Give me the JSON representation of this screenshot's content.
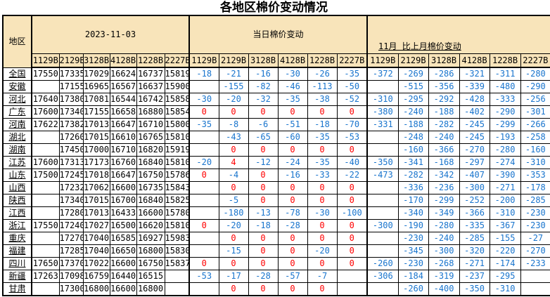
{
  "title": "各地区棉价变动情况",
  "colors": {
    "negative_text": "#1874CD",
    "non_negative_text": "#FF0000",
    "header_fill": "#F8E4BA",
    "border": "#000000"
  },
  "header": {
    "region_label": "地区",
    "groups": [
      {
        "label": "2023-11-03"
      },
      {
        "label": "当日棉价变动"
      },
      {
        "label": "11月 比上月棉价变动"
      }
    ],
    "grade_codes": [
      "1129B",
      "2129B",
      "3128B",
      "4128B",
      "1228B",
      "2227B"
    ]
  },
  "rows": [
    {
      "region": "全国",
      "prices": [
        "17550",
        "17335",
        "17029",
        "16624",
        "16737",
        "15819"
      ],
      "daily_change": [
        "-18",
        "-21",
        "-16",
        "-30",
        "-26",
        "-35"
      ],
      "monthly_change": [
        "-372",
        "-269",
        "-286",
        "-321",
        "-311",
        "-280"
      ]
    },
    {
      "region": "安徽",
      "prices": [
        "",
        "17155",
        "16965",
        "16567",
        "16637",
        "15900"
      ],
      "daily_change": [
        "",
        "-155",
        "-82",
        "-46",
        "-113",
        "-50"
      ],
      "monthly_change": [
        "",
        "-515",
        "-356",
        "-339",
        "-480",
        "-290"
      ]
    },
    {
      "region": "河北",
      "prices": [
        "17640",
        "17380",
        "17081",
        "16544",
        "16742",
        "15858"
      ],
      "daily_change": [
        "-30",
        "-20",
        "-32",
        "-35",
        "-38",
        "-52"
      ],
      "monthly_change": [
        "-310",
        "-295",
        "-292",
        "-428",
        "-333",
        "-256"
      ]
    },
    {
      "region": "广东",
      "prices": [
        "17600",
        "17340",
        "17155",
        "16658",
        "16880",
        "15854"
      ],
      "daily_change": [
        "0",
        "0",
        "0",
        "0",
        "0",
        "0"
      ],
      "monthly_change": [
        "-380",
        "-240",
        "-188",
        "-402",
        "-290",
        "-301"
      ]
    },
    {
      "region": "河南",
      "prices": [
        "17622",
        "17382",
        "17013",
        "16647",
        "16710",
        "15800"
      ],
      "daily_change": [
        "-35",
        "-8",
        "-6",
        "-51",
        "-18",
        "-70"
      ],
      "monthly_change": [
        "-331",
        "-188",
        "-282",
        "-245",
        "-299",
        "-266"
      ]
    },
    {
      "region": "湖北",
      "prices": [
        "",
        "17260",
        "17015",
        "16610",
        "16765",
        "15810"
      ],
      "daily_change": [
        "",
        "-43",
        "-65",
        "-60",
        "-35",
        "-53"
      ],
      "monthly_change": [
        "",
        "-248",
        "-240",
        "-245",
        "-193",
        "-258"
      ]
    },
    {
      "region": "湖南",
      "prices": [
        "",
        "17450",
        "17000",
        "16710",
        "16820",
        "15919"
      ],
      "daily_change": [
        "",
        "0",
        "0",
        "0",
        "0",
        "0"
      ],
      "monthly_change": [
        "",
        "-160",
        "-366",
        "-270",
        "-280",
        "-160"
      ]
    },
    {
      "region": "江苏",
      "prices": [
        "17600",
        "17313",
        "17173",
        "16760",
        "16840",
        "15810"
      ],
      "daily_change": [
        "-20",
        "4",
        "-12",
        "-24",
        "-35",
        "-40"
      ],
      "monthly_change": [
        "-350",
        "-341",
        "-168",
        "-297",
        "-274",
        "-310"
      ]
    },
    {
      "region": "山东",
      "prices": [
        "17500",
        "17245",
        "17018",
        "16647",
        "16750",
        "15786"
      ],
      "daily_change": [
        "0",
        "-4",
        "0",
        "-16",
        "-33",
        "-22"
      ],
      "monthly_change": [
        "-473",
        "-282",
        "-342",
        "-407",
        "-390",
        "-353"
      ]
    },
    {
      "region": "山西",
      "prices": [
        "",
        "17232",
        "17062",
        "16600",
        "16735",
        "15843"
      ],
      "daily_change": [
        "",
        "0",
        "0",
        "0",
        "0",
        "0"
      ],
      "monthly_change": [
        "",
        "-336",
        "-236",
        "-300",
        "-271",
        "-178"
      ]
    },
    {
      "region": "陕西",
      "prices": [
        "",
        "17340",
        "17015",
        "16700",
        "16840",
        "15825"
      ],
      "daily_change": [
        "",
        "-5",
        "0",
        "0",
        "0",
        "0"
      ],
      "monthly_change": [
        "",
        "-170",
        "-299",
        "-252",
        "-200",
        "-285"
      ]
    },
    {
      "region": "江西",
      "prices": [
        "",
        "17280",
        "17013",
        "16433",
        "16600",
        "15780"
      ],
      "daily_change": [
        "",
        "-180",
        "-13",
        "-78",
        "-30",
        "-100"
      ],
      "monthly_change": [
        "",
        "-340",
        "-349",
        "-366",
        "-310",
        "-230"
      ]
    },
    {
      "region": "浙江",
      "prices": [
        "17550",
        "17240",
        "17027",
        "16500",
        "16620",
        "15810"
      ],
      "daily_change": [
        "0",
        "-20",
        "-18",
        "-28",
        "0",
        "0"
      ],
      "monthly_change": [
        "-300",
        "-190",
        "-280",
        "-335",
        "-367",
        "-230"
      ]
    },
    {
      "region": "重庆",
      "prices": [
        "",
        "17270",
        "17040",
        "16585",
        "16927",
        "15983"
      ],
      "daily_change": [
        "",
        "0",
        "0",
        "0",
        "0",
        "0"
      ],
      "monthly_change": [
        "",
        "-230",
        "-240",
        "-285",
        "-155",
        "-27"
      ]
    },
    {
      "region": "福建",
      "prices": [
        "",
        "17285",
        "17040",
        "16650",
        "16800",
        "15830"
      ],
      "daily_change": [
        "",
        "-15",
        "0",
        "0",
        "-20",
        "0"
      ],
      "monthly_change": [
        "",
        "-345",
        "-300",
        "-320",
        "-220",
        "-270"
      ]
    },
    {
      "region": "四川",
      "prices": [
        "17650",
        "17370",
        "17022",
        "16600",
        "16750",
        "15837"
      ],
      "daily_change": [
        "0",
        "0",
        "0",
        "0",
        "0",
        "0"
      ],
      "monthly_change": [
        "-260",
        "-230",
        "-268",
        "-271",
        "-174",
        "-233"
      ]
    },
    {
      "region": "新疆",
      "prices": [
        "17263",
        "17098",
        "16759",
        "16440",
        "16515",
        ""
      ],
      "daily_change": [
        "-53",
        "-17",
        "-28",
        "-57",
        "-7",
        ""
      ],
      "monthly_change": [
        "-306",
        "-184",
        "-319",
        "-237",
        "-295",
        ""
      ]
    },
    {
      "region": "甘肃",
      "prices": [
        "",
        "17300",
        "16800",
        "16600",
        "16800",
        ""
      ],
      "daily_change": [
        "",
        "0",
        "0",
        "0",
        "0",
        ""
      ],
      "monthly_change": [
        "",
        "-260",
        "-400",
        "-350",
        "-310",
        ""
      ]
    }
  ]
}
